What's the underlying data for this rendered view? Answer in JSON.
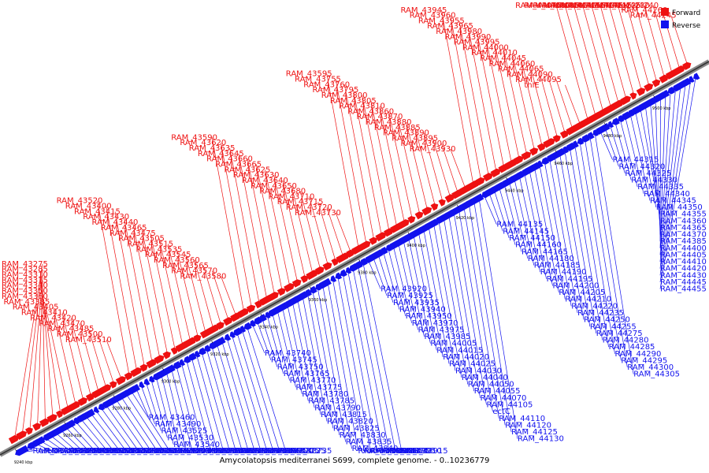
{
  "caption": "Amycolatopsis mediterranei S699, complete genome. - 0..10236779",
  "legend": [
    {
      "label": "Forward",
      "color": "#ee1111"
    },
    {
      "label": "Reverse",
      "color": "#1111ee"
    }
  ],
  "colors": {
    "forward": "#ee1111",
    "reverse": "#1111ee",
    "backbone": "#555555"
  },
  "ticks": [
    "9240 kbp",
    "9260 kbp",
    "9280 kbp",
    "9300 kbp",
    "9320 kbp",
    "9340 kbp",
    "9360 kbp",
    "9380 kbp",
    "9400 kbp",
    "9420 kbp",
    "9440 kbp",
    "9460 kbp",
    "9480 kbp",
    "9500 kbp"
  ],
  "forward_labels": [
    "RAM_43275",
    "RAM_43285",
    "RAM_43310",
    "RAM_43315",
    "RAM_43340",
    "RAM_43350",
    "RAM_43360",
    "RAM_43385",
    "RAM_43405",
    "RAM_43410",
    "RAM_43420",
    "RAM_43470",
    "RAM_43485",
    "RAM_43500",
    "RAM_43510",
    "RAM_43520",
    "RAM_43400",
    "RAM_43415",
    "RAM_43430",
    "RAM_43440",
    "RAM_43465",
    "RAM_43475",
    "RAM_43505",
    "RAM_43515",
    "RAM_43535",
    "RAM_43545",
    "RAM_43560",
    "RAM_43565",
    "RAM_43570",
    "RAM_43580",
    "RAM_43590",
    "RAM_43620",
    "RAM_43635",
    "RAM_43645",
    "RAM_43660",
    "RAM_43665",
    "RAM_43625",
    "RAM_43630",
    "RAM_43640",
    "RAM_43650",
    "RAM_43680",
    "RAM_43710",
    "RAM_43715",
    "RAM_43720",
    "RAM_43730",
    "RAM_43595",
    "RAM_43755",
    "RAM_43760",
    "RAM_43795",
    "RAM_43800",
    "RAM_43805",
    "RAM_43810",
    "RAM_43860",
    "RAM_43870",
    "RAM_43880",
    "RAM_43885",
    "RAM_43890",
    "RAM_43895",
    "RAM_43900",
    "RAM_43930",
    "RAM_43945",
    "RAM_43960",
    "RAM_43955",
    "RAM_43965",
    "RAM_43980",
    "RAM_43990",
    "RAM_43995",
    "RAM_44000",
    "RAM_44010",
    "RAM_44045",
    "RAM_44060",
    "RAM_44065",
    "RAM_44090",
    "RAM_44095",
    "thiE",
    "RAM_44075",
    "RAM_44080",
    "RAM_44085",
    "RAM_44100",
    "RAM_44140",
    "RAM_44155",
    "RAM_44170",
    "RAM_44175",
    "RAM_44215",
    "RAM_44225",
    "RAM_44230",
    "RAM_44240",
    "RAM_44260",
    "RAM_44245"
  ],
  "reverse_labels": [
    "RAM_43295",
    "ureC",
    "RAM_43330",
    "RAM_43375",
    "RAM_43390",
    "RAM_43445",
    "RAM_43480",
    "RAM_43495",
    "RAM_43595b",
    "RAM_43195",
    "RAM_43215",
    "RAM_43265",
    "RAM_43290",
    "RAM_43270",
    "RAM_43305",
    "RAM_43345",
    "RAM_43355",
    "RAM_43380",
    "RAM_43395",
    "RAM_43425",
    "RAM_43435",
    "RAM_43450",
    "RAM_43455",
    "RAM_43460",
    "RAM_43490",
    "RAM_43525",
    "RAM_43530",
    "RAM_43540",
    "RAM_43550",
    "RAM_43555",
    "RAM_43575",
    "RAM_43585",
    "RAM_43600",
    "RAM_43605",
    "RAM_43610",
    "RAM_43615",
    "RAM_43655",
    "RAM_43670",
    "RAM_43675",
    "RAM_43685",
    "RAM_43690",
    "RAM_43695",
    "RAM_43700",
    "RAM_43705",
    "RAM_43725",
    "RAM_43735",
    "RAM_43740",
    "RAM_43745",
    "RAM_43750",
    "RAM_43765",
    "RAM_43770",
    "RAM_43775",
    "RAM_43780",
    "RAM_43785",
    "RAM_43790",
    "RAM_43815",
    "RAM_43820",
    "RAM_43825",
    "RAM_43830",
    "RAM_43835",
    "RAM_43840",
    "RAM_43845",
    "RAM_43850",
    "RAM_43855",
    "RAM_43865",
    "RAM_43875",
    "RAM_43905",
    "RAM_43910",
    "RAM_43915",
    "RAM_43920",
    "RAM_43925",
    "RAM_43935",
    "RAM_43940",
    "RAM_43950",
    "RAM_43970",
    "RAM_43975",
    "RAM_43985",
    "RAM_44005",
    "RAM_44015",
    "RAM_44020",
    "RAM_44025",
    "RAM_44030",
    "RAM_44040",
    "RAM_44050",
    "RAM_44055",
    "RAM_44070",
    "RAM_44105",
    "ectC",
    "RAM_44110",
    "RAM_44120",
    "RAM_44125",
    "RAM_44130",
    "RAM_44135",
    "RAM_44145",
    "RAM_44150",
    "RAM_44160",
    "RAM_44165",
    "RAM_44180",
    "RAM_44185",
    "RAM_44190",
    "RAM_44195",
    "RAM_44200",
    "RAM_44205",
    "RAM_44210",
    "RAM_44220",
    "RAM_44235",
    "RAM_44250",
    "RAM_44255",
    "RAM_44275",
    "RAM_44280",
    "RAM_44285",
    "RAM_44290",
    "RAM_44295",
    "RAM_44300",
    "RAM_44305",
    "RAM_44315",
    "RAM_44320",
    "RAM_44325",
    "RAM_44330",
    "RAM_44335",
    "RAM_44340",
    "RAM_44345",
    "RAM_44350",
    "RAM_44355",
    "RAM_44360",
    "RAM_44365",
    "RAM_44370",
    "RAM_44385",
    "RAM_44400",
    "RAM_44405",
    "RAM_44410",
    "RAM_44420",
    "RAM_44430",
    "RAM_44445",
    "RAM_44455"
  ]
}
